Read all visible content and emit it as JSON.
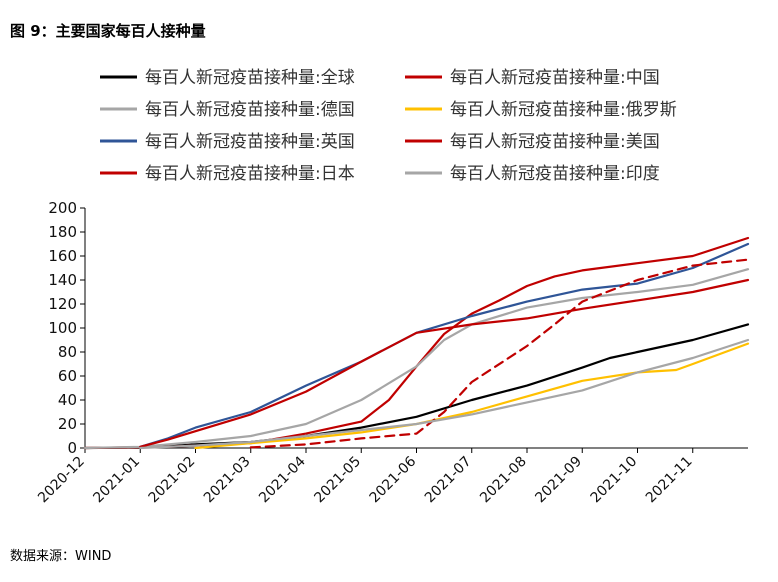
{
  "figure_title": "图 9：主要国家每百人接种量",
  "source": "数据来源：WIND",
  "chart_data": {
    "type": "line",
    "xlabel": "",
    "ylabel": "",
    "ylim": [
      0,
      200
    ],
    "yticks": [
      0,
      20,
      40,
      60,
      80,
      100,
      120,
      140,
      160,
      180,
      200
    ],
    "x_tick_labels": [
      "2020-12",
      "2021-01",
      "2021-02",
      "2021-03",
      "2021-04",
      "2021-05",
      "2021-06",
      "2021-07",
      "2021-08",
      "2021-09",
      "2021-10",
      "2021-11"
    ],
    "grid": false,
    "legend_position": "top",
    "legend_order": [
      "全球",
      "中国",
      "德国",
      "俄罗斯",
      "英国",
      "美国",
      "日本",
      "印度"
    ],
    "series": [
      {
        "name": "每百人新冠疫苗接种量:全球",
        "color": "#000000",
        "dashed": false,
        "points": [
          [
            0,
            0
          ],
          [
            1,
            0.3
          ],
          [
            1.5,
            1.5
          ],
          [
            2,
            3
          ],
          [
            3,
            5
          ],
          [
            4,
            10
          ],
          [
            5,
            17
          ],
          [
            6,
            26
          ],
          [
            7,
            40
          ],
          [
            8,
            52
          ],
          [
            9,
            67
          ],
          [
            9.5,
            75
          ],
          [
            10,
            80
          ],
          [
            11,
            90
          ],
          [
            12,
            103
          ]
        ]
      },
      {
        "name": "每百人新冠疫苗接种量:中国",
        "color": "#C00000",
        "dashed": false,
        "points": [
          [
            0,
            0
          ],
          [
            1.5,
            1
          ],
          [
            2,
            2
          ],
          [
            3,
            4
          ],
          [
            4,
            12
          ],
          [
            5,
            22
          ],
          [
            5.5,
            40
          ],
          [
            6,
            68
          ],
          [
            6.5,
            95
          ],
          [
            7,
            112
          ],
          [
            7.5,
            123
          ],
          [
            8,
            135
          ],
          [
            8.5,
            143
          ],
          [
            9,
            148
          ],
          [
            10,
            154
          ],
          [
            11,
            160
          ],
          [
            12,
            175
          ]
        ]
      },
      {
        "name": "每百人新冠疫苗接种量:德国",
        "color": "#A6A6A6",
        "dashed": false,
        "points": [
          [
            0,
            0
          ],
          [
            1,
            1
          ],
          [
            2,
            5
          ],
          [
            3,
            10
          ],
          [
            4,
            20
          ],
          [
            5,
            40
          ],
          [
            6,
            68
          ],
          [
            6.5,
            90
          ],
          [
            7,
            103
          ],
          [
            8,
            117
          ],
          [
            9,
            125
          ],
          [
            10,
            130
          ],
          [
            11,
            136
          ],
          [
            12,
            149
          ]
        ]
      },
      {
        "name": "每百人新冠疫苗接种量:俄罗斯",
        "color": "#FFC000",
        "dashed": false,
        "points": [
          [
            2,
            0
          ],
          [
            3,
            4
          ],
          [
            4,
            8
          ],
          [
            5,
            13
          ],
          [
            6,
            20
          ],
          [
            7,
            30
          ],
          [
            8,
            43
          ],
          [
            9,
            56
          ],
          [
            10,
            63
          ],
          [
            10.7,
            65
          ],
          [
            11,
            70
          ],
          [
            12,
            87
          ]
        ]
      },
      {
        "name": "每百人新冠疫苗接种量:英国",
        "color": "#2F5597",
        "dashed": false,
        "points": [
          [
            1,
            1
          ],
          [
            1.5,
            8
          ],
          [
            2,
            17
          ],
          [
            3,
            30
          ],
          [
            4,
            52
          ],
          [
            5,
            72
          ],
          [
            6,
            96
          ],
          [
            7,
            110
          ],
          [
            8,
            122
          ],
          [
            9,
            132
          ],
          [
            10,
            137
          ],
          [
            11,
            150
          ],
          [
            12,
            170
          ]
        ]
      },
      {
        "name": "每百人新冠疫苗接种量:美国",
        "color": "#C00000",
        "dashed": false,
        "points": [
          [
            1,
            1
          ],
          [
            1.5,
            7
          ],
          [
            2,
            14
          ],
          [
            3,
            28
          ],
          [
            4,
            47
          ],
          [
            5,
            72
          ],
          [
            6,
            96
          ],
          [
            7,
            103
          ],
          [
            8,
            108
          ],
          [
            9,
            116
          ],
          [
            10,
            123
          ],
          [
            11,
            130
          ],
          [
            12,
            140
          ]
        ]
      },
      {
        "name": "每百人新冠疫苗接种量:日本",
        "color": "#C00000",
        "dashed": true,
        "points": [
          [
            3,
            0.5
          ],
          [
            4,
            3
          ],
          [
            5,
            8
          ],
          [
            6,
            12
          ],
          [
            6.5,
            30
          ],
          [
            7,
            55
          ],
          [
            8,
            85
          ],
          [
            8.5,
            103
          ],
          [
            9,
            122
          ],
          [
            10,
            140
          ],
          [
            11,
            152
          ],
          [
            12,
            157
          ]
        ]
      },
      {
        "name": "每百人新冠疫苗接种量:印度",
        "color": "#A6A6A6",
        "dashed": false,
        "points": [
          [
            1,
            0
          ],
          [
            2,
            2
          ],
          [
            3,
            5
          ],
          [
            4,
            10
          ],
          [
            5,
            15
          ],
          [
            6,
            20
          ],
          [
            7,
            28
          ],
          [
            8,
            38
          ],
          [
            9,
            48
          ],
          [
            10,
            63
          ],
          [
            11,
            75
          ],
          [
            12,
            90
          ]
        ]
      }
    ]
  }
}
